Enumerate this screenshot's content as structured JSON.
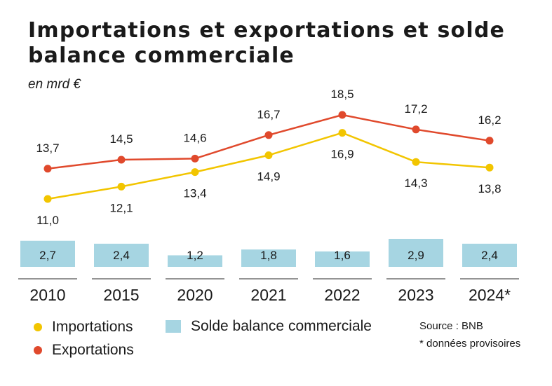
{
  "title": "Importations et exportations et solde balance commerciale",
  "subtitle": "en mrd €",
  "colors": {
    "imports": "#f2c500",
    "exports": "#e0492c",
    "balance": "#a6d5e2",
    "axis": "#555555"
  },
  "chart_data": {
    "type": "line",
    "title": "Importations et exportations et solde balance commerciale",
    "ylabel": "en mrd €",
    "categories": [
      "2010",
      "2015",
      "2020",
      "2021",
      "2022",
      "2023",
      "2024*"
    ],
    "series": [
      {
        "name": "Importations",
        "type": "line",
        "values": [
          11.0,
          12.1,
          13.4,
          14.9,
          16.9,
          14.3,
          13.8
        ],
        "labels": [
          "11,0",
          "12,1",
          "13,4",
          "14,9",
          "16,9",
          "14,3",
          "13,8"
        ]
      },
      {
        "name": "Exportations",
        "type": "line",
        "values": [
          13.7,
          14.5,
          14.6,
          16.7,
          18.5,
          17.2,
          16.2
        ],
        "labels": [
          "13,7",
          "14,5",
          "14,6",
          "16,7",
          "18,5",
          "17,2",
          "16,2"
        ]
      },
      {
        "name": "Solde balance commerciale",
        "type": "bar",
        "values": [
          2.7,
          2.4,
          1.2,
          1.8,
          1.6,
          2.9,
          2.4
        ],
        "labels": [
          "2,7",
          "2,4",
          "1,2",
          "1,8",
          "1,6",
          "2,9",
          "2,4"
        ]
      }
    ],
    "legend": "bottom-left",
    "grid": false
  },
  "legend": {
    "imports": "Importations",
    "balance": "Solde balance commerciale",
    "exports": "Exportations"
  },
  "source": "Source : BNB",
  "footnote": "* données provisoires"
}
